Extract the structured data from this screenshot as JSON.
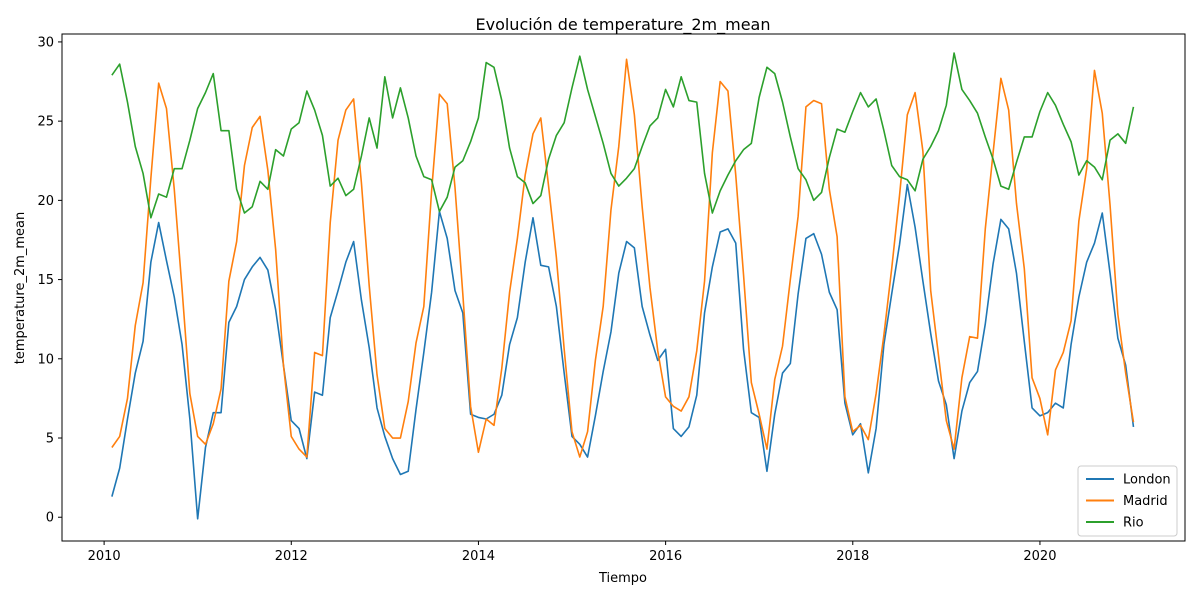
{
  "chart_data": {
    "type": "line",
    "title": "Evolución de temperature_2m_mean",
    "xlabel": "Tiempo",
    "ylabel": "temperature_2m_mean",
    "xlim": [
      2009.55,
      2021.55
    ],
    "ylim": [
      -1.5,
      30.5
    ],
    "xticks": [
      2010,
      2012,
      2014,
      2016,
      2018,
      2020
    ],
    "yticks": [
      0,
      5,
      10,
      15,
      20,
      25,
      30
    ],
    "grid": false,
    "legend_position": "lower right",
    "x_start": 2010.083,
    "x_step": 0.08333,
    "series": [
      {
        "name": "London",
        "color": "#1f77b4",
        "values": [
          1.3,
          3.1,
          6.2,
          9.1,
          11.1,
          16.1,
          18.6,
          16.2,
          13.9,
          10.9,
          6.2,
          -0.1,
          4.4,
          6.6,
          6.6,
          12.3,
          13.3,
          15.0,
          15.8,
          16.4,
          15.6,
          13.1,
          9.6,
          6.1,
          5.6,
          3.7,
          7.9,
          7.7,
          12.6,
          14.3,
          16.1,
          17.4,
          13.7,
          10.7,
          6.9,
          5.1,
          3.7,
          2.7,
          2.9,
          6.8,
          10.4,
          14.2,
          19.3,
          17.6,
          14.3,
          12.9,
          6.5,
          6.3,
          6.2,
          6.5,
          7.7,
          10.9,
          12.6,
          16.1,
          18.9,
          15.9,
          15.8,
          13.3,
          9.1,
          5.1,
          4.6,
          3.8,
          6.4,
          9.2,
          11.7,
          15.4,
          17.4,
          17.0,
          13.3,
          11.5,
          9.9,
          10.6,
          5.6,
          5.1,
          5.7,
          7.7,
          12.9,
          15.8,
          18.0,
          18.2,
          17.3,
          10.6,
          6.6,
          6.3,
          2.9,
          6.5,
          9.1,
          9.7,
          14.1,
          17.6,
          17.9,
          16.6,
          14.2,
          13.1,
          7.2,
          5.2,
          5.9,
          2.8,
          5.6,
          10.9,
          14.1,
          17.2,
          21.0,
          18.3,
          14.9,
          11.6,
          8.6,
          7.1,
          3.7,
          6.7,
          8.5,
          9.2,
          12.2,
          16.0,
          18.8,
          18.2,
          15.4,
          11.1,
          6.9,
          6.4,
          6.6,
          7.2,
          6.9,
          10.9,
          13.9,
          16.1,
          17.3,
          19.2,
          15.4,
          11.3,
          9.6,
          5.7
        ]
      },
      {
        "name": "Madrid",
        "color": "#ff7f0e",
        "values": [
          4.4,
          5.1,
          7.5,
          12.1,
          14.8,
          21.4,
          27.4,
          25.8,
          20.7,
          14.4,
          7.8,
          5.1,
          4.6,
          5.9,
          8.1,
          14.9,
          17.4,
          22.2,
          24.6,
          25.3,
          21.9,
          16.9,
          9.6,
          5.1,
          4.3,
          3.8,
          10.4,
          10.2,
          18.6,
          23.8,
          25.7,
          26.4,
          21.1,
          14.6,
          9.0,
          5.6,
          5.0,
          5.0,
          7.3,
          11.0,
          13.3,
          20.6,
          26.7,
          26.1,
          20.8,
          14.1,
          7.0,
          4.1,
          6.2,
          5.8,
          9.4,
          14.2,
          17.6,
          21.6,
          24.2,
          25.2,
          20.9,
          16.4,
          10.6,
          5.4,
          3.8,
          5.4,
          9.9,
          13.3,
          19.4,
          23.4,
          28.9,
          25.4,
          19.6,
          14.5,
          10.5,
          7.6,
          7.0,
          6.7,
          7.6,
          10.5,
          14.9,
          23.0,
          27.5,
          26.9,
          21.6,
          15.3,
          8.5,
          6.5,
          4.3,
          8.7,
          10.8,
          15.0,
          19.0,
          25.9,
          26.3,
          26.1,
          20.7,
          17.7,
          7.6,
          5.4,
          5.8,
          4.9,
          7.8,
          11.5,
          15.7,
          20.3,
          25.4,
          26.8,
          23.1,
          14.3,
          10.2,
          6.1,
          4.3,
          8.8,
          11.4,
          11.3,
          18.2,
          23.0,
          27.7,
          25.7,
          19.8,
          15.7,
          8.8,
          7.5,
          5.2,
          9.3,
          10.4,
          12.4,
          18.7,
          22.0,
          28.2,
          25.5,
          19.7,
          12.8,
          9.1,
          6.0
        ]
      },
      {
        "name": "Rio",
        "color": "#2ca02c",
        "values": [
          27.9,
          28.6,
          26.2,
          23.4,
          21.7,
          18.9,
          20.4,
          20.2,
          22.0,
          22.0,
          23.8,
          25.8,
          26.8,
          28.0,
          24.4,
          24.4,
          20.7,
          19.2,
          19.6,
          21.2,
          20.7,
          23.2,
          22.8,
          24.5,
          24.9,
          26.9,
          25.7,
          24.1,
          20.9,
          21.4,
          20.3,
          20.7,
          22.8,
          25.2,
          23.3,
          27.8,
          25.2,
          27.1,
          25.2,
          22.8,
          21.5,
          21.3,
          19.3,
          20.2,
          22.1,
          22.5,
          23.7,
          25.2,
          28.7,
          28.4,
          26.3,
          23.3,
          21.5,
          21.1,
          19.8,
          20.3,
          22.6,
          24.1,
          24.9,
          27.1,
          29.1,
          27.0,
          25.3,
          23.6,
          21.7,
          20.9,
          21.4,
          22.0,
          23.4,
          24.7,
          25.2,
          27.0,
          25.9,
          27.8,
          26.3,
          26.2,
          21.7,
          19.2,
          20.6,
          21.6,
          22.5,
          23.2,
          23.6,
          26.5,
          28.4,
          28.0,
          26.2,
          24.0,
          22.0,
          21.3,
          20.0,
          20.5,
          22.7,
          24.5,
          24.3,
          25.6,
          26.8,
          25.9,
          26.4,
          24.4,
          22.2,
          21.5,
          21.3,
          20.6,
          22.6,
          23.4,
          24.4,
          26.0,
          29.3,
          27.0,
          26.3,
          25.5,
          24.0,
          22.6,
          20.9,
          20.7,
          22.4,
          24.0,
          24.0,
          25.6,
          26.8,
          26.0,
          24.8,
          23.7,
          21.6,
          22.5,
          22.1,
          21.3,
          23.8,
          24.2,
          23.6,
          25.9
        ]
      }
    ]
  }
}
